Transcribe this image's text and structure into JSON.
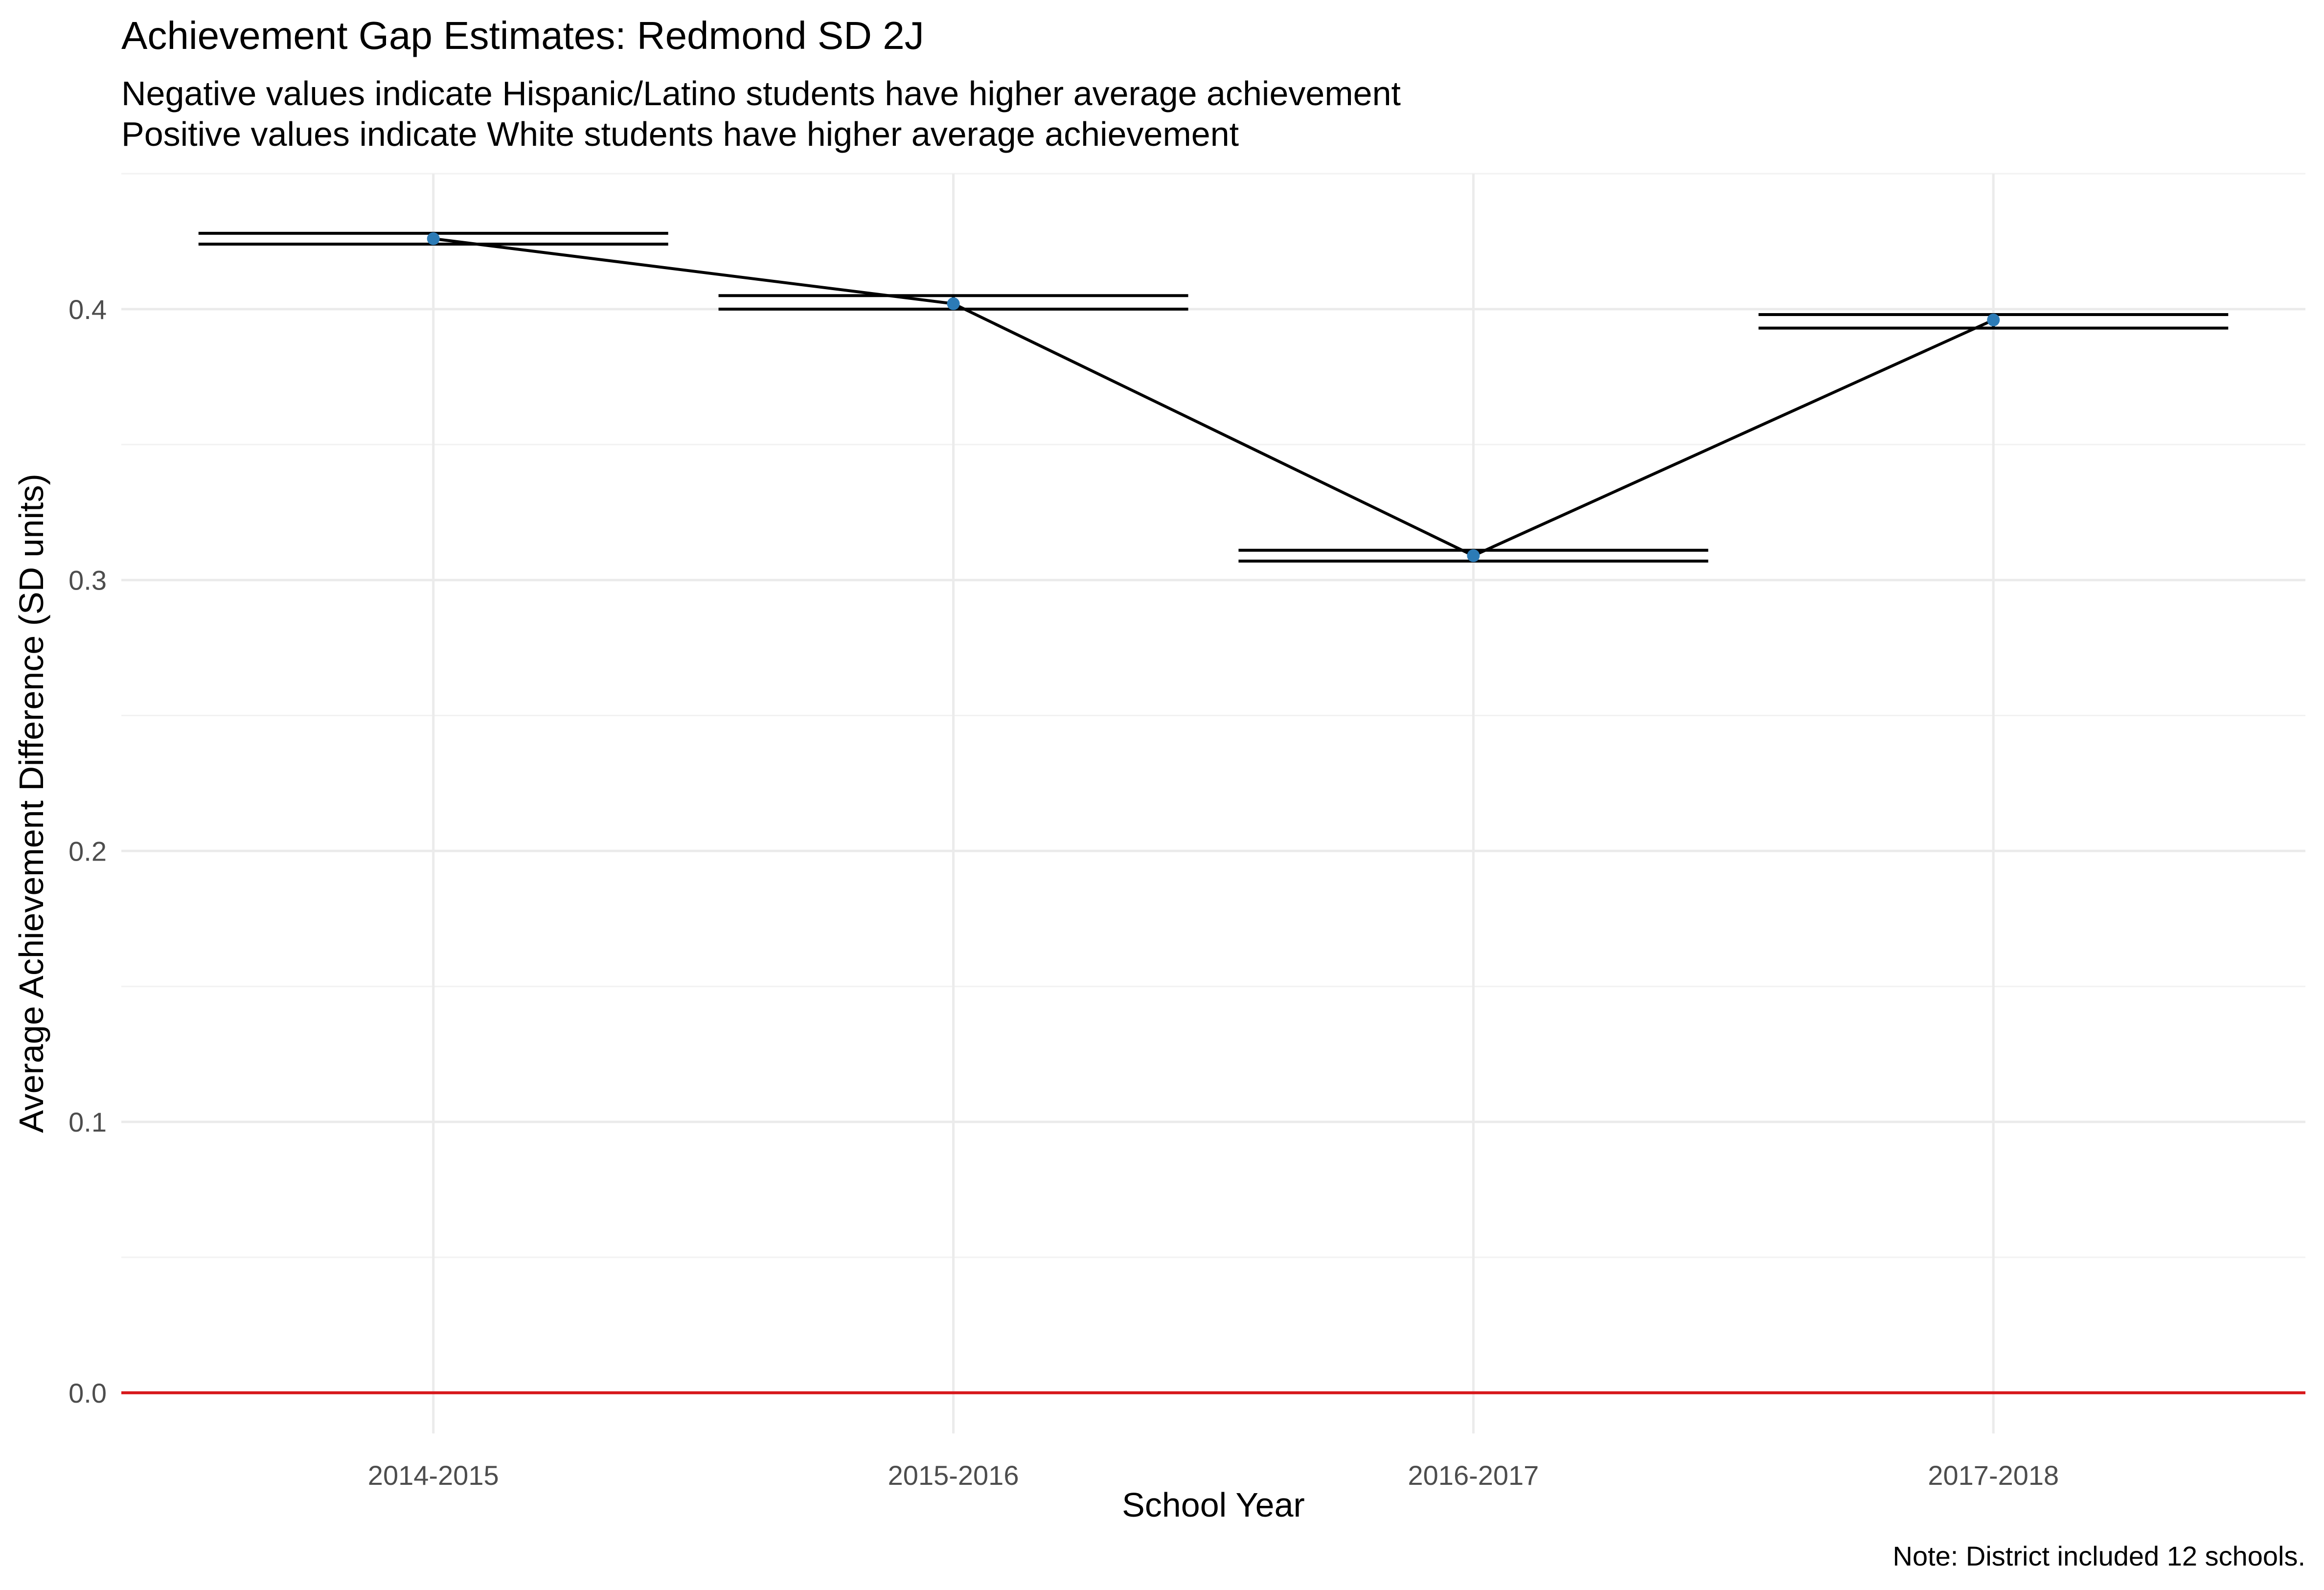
{
  "chart_data": {
    "type": "line",
    "title": "Achievement Gap Estimates: Redmond SD 2J",
    "subtitle": [
      "Negative values indicate Hispanic/Latino students have higher average achievement",
      "Positive values indicate White students have higher average achievement"
    ],
    "xlabel": "School Year",
    "ylabel": "Average Achievement Difference (SD units)",
    "caption": "Note: District included 12 schools.",
    "categories": [
      "2014-2015",
      "2015-2016",
      "2016-2017",
      "2017-2018"
    ],
    "values": [
      0.426,
      0.402,
      0.309,
      0.396
    ],
    "error_bars": [
      {
        "lower": 0.424,
        "upper": 0.428
      },
      {
        "lower": 0.4,
        "upper": 0.405
      },
      {
        "lower": 0.307,
        "upper": 0.311
      },
      {
        "lower": 0.393,
        "upper": 0.398
      }
    ],
    "ylim": [
      -0.015,
      0.45
    ],
    "yticks": [
      0.0,
      0.1,
      0.2,
      0.3,
      0.4
    ],
    "ytick_labels": [
      "0.0",
      "0.1",
      "0.2",
      "0.3",
      "0.4"
    ],
    "reference_line": {
      "y": 0.0,
      "color": "#d7191c"
    },
    "point_color": "#2c7bb6",
    "line_color": "#000000",
    "grid": true,
    "legend": "none"
  }
}
